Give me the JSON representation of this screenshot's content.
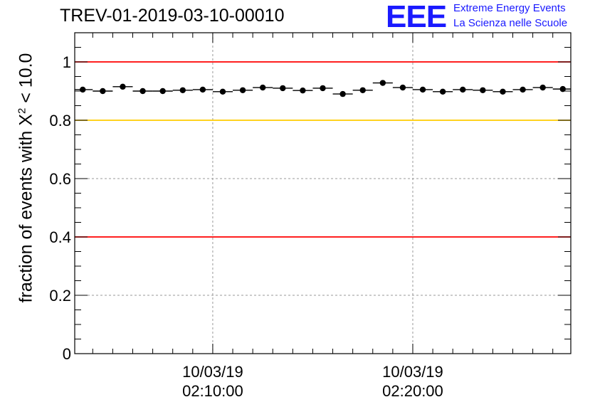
{
  "header": {
    "title": "TREV-01-2019-03-10-00010",
    "logo_text": "EEE",
    "logo_line1": "Extreme Energy Events",
    "logo_line2": "La Scienza nelle Scuole"
  },
  "axis_label": {
    "prefix": "fraction of events with X",
    "exponent": "2",
    "suffix": " < 10.0"
  },
  "colors": {
    "red_line": "#ff0000",
    "yellow_line": "#ffcc00",
    "markers": "#000000",
    "grid": "#999999"
  },
  "chart_data": {
    "type": "scatter",
    "title": "TREV-01-2019-03-10-00010",
    "ylabel": "fraction of events with X^2 < 10.0",
    "xlabel": "",
    "ylim": [
      0,
      1.1
    ],
    "yticks": [
      "0",
      "0.2",
      "0.4",
      "0.6",
      "0.8",
      "1"
    ],
    "ytick_values": [
      0,
      0.2,
      0.4,
      0.6,
      0.8,
      1.0
    ],
    "xlim_minutes": [
      3.1,
      27.9
    ],
    "xticks": [
      {
        "date": "10/03/19",
        "time": "02:10:00",
        "minutes": 10
      },
      {
        "date": "10/03/19",
        "time": "02:20:00",
        "minutes": 20
      }
    ],
    "grid": true,
    "reference_lines": [
      {
        "y": 1.0,
        "color": "red"
      },
      {
        "y": 0.8,
        "color": "yellow"
      },
      {
        "y": 0.4,
        "color": "red"
      }
    ],
    "series": [
      {
        "x_minutes": [
          3.5,
          4.5,
          5.5,
          6.5,
          7.5,
          8.5,
          9.5,
          10.5,
          11.5,
          12.5,
          13.5,
          14.5,
          15.5,
          16.5,
          17.5,
          18.5,
          19.5,
          20.5,
          21.5,
          22.5,
          23.5,
          24.5,
          25.5,
          26.5,
          27.5
        ],
        "values": [
          0.905,
          0.9,
          0.915,
          0.9,
          0.9,
          0.903,
          0.905,
          0.898,
          0.903,
          0.912,
          0.91,
          0.902,
          0.91,
          0.89,
          0.903,
          0.928,
          0.912,
          0.905,
          0.898,
          0.905,
          0.903,
          0.898,
          0.905,
          0.912,
          0.907
        ]
      }
    ]
  }
}
